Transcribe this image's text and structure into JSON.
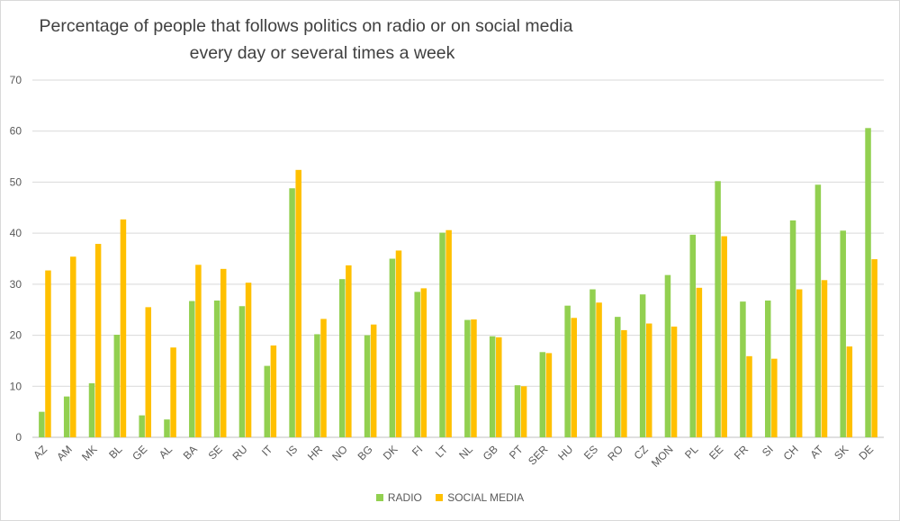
{
  "chart_data": {
    "type": "bar",
    "title": "Percentage of people that follows politics on radio or on social media",
    "subtitle": "every day or several times a week",
    "categories": [
      "AZ",
      "AM",
      "MK",
      "BL",
      "GE",
      "AL",
      "BA",
      "SE",
      "RU",
      "IT",
      "IS",
      "HR",
      "NO",
      "BG",
      "DK",
      "FI",
      "LT",
      "NL",
      "GB",
      "PT",
      "SER",
      "HU",
      "ES",
      "RO",
      "CZ",
      "MON",
      "PL",
      "EE",
      "FR",
      "SI",
      "CH",
      "AT",
      "SK",
      "DE"
    ],
    "series": [
      {
        "name": "RADIO",
        "color": "#92d050",
        "values": [
          5,
          8,
          10.6,
          20.1,
          4.3,
          3.5,
          26.7,
          26.8,
          25.7,
          14,
          48.8,
          20.2,
          31,
          20,
          35,
          28.5,
          40.1,
          23,
          19.8,
          10.2,
          16.7,
          25.8,
          29,
          23.6,
          28,
          31.8,
          39.7,
          50.2,
          26.6,
          26.8,
          42.5,
          49.5,
          40.5,
          60.6
        ]
      },
      {
        "name": "SOCIAL MEDIA",
        "color": "#ffc000",
        "values": [
          32.7,
          35.4,
          37.9,
          42.7,
          25.5,
          17.6,
          33.8,
          33,
          30.3,
          18,
          52.4,
          23.2,
          33.7,
          22.1,
          36.6,
          29.2,
          40.6,
          23.1,
          19.6,
          10,
          16.5,
          23.4,
          26.4,
          21,
          22.3,
          21.7,
          29.3,
          39.4,
          15.9,
          15.4,
          29,
          30.8,
          17.8,
          34.9
        ]
      }
    ],
    "y_ticks": [
      "0",
      "10",
      "20",
      "30",
      "40",
      "50",
      "60",
      "70"
    ],
    "ylim": [
      0,
      70
    ],
    "grid": true,
    "legend_position": "bottom"
  }
}
